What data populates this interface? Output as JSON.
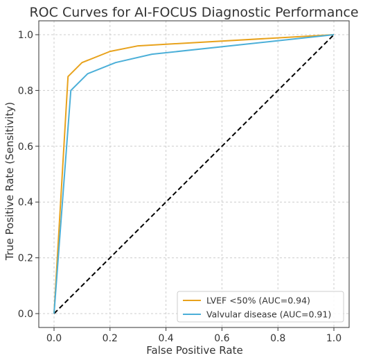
{
  "chart_data": {
    "type": "line",
    "title": "ROC Curves for AI-FOCUS Diagnostic Performance",
    "xlabel": "False Positive Rate",
    "ylabel": "True Positive Rate (Sensitivity)",
    "xlim": [
      0.0,
      1.0
    ],
    "ylim": [
      0.0,
      1.0
    ],
    "xticks": [
      "0.0",
      "0.2",
      "0.4",
      "0.6",
      "0.8",
      "1.0"
    ],
    "yticks": [
      "0.0",
      "0.2",
      "0.4",
      "0.6",
      "0.8",
      "1.0"
    ],
    "grid": true,
    "legend_position": "lower-right",
    "series": [
      {
        "name": "LVEF <50% (AUC=0.94)",
        "color": "#E8A21C",
        "x": [
          0.0,
          0.05,
          0.1,
          0.2,
          0.3,
          1.0
        ],
        "y": [
          0.0,
          0.85,
          0.9,
          0.94,
          0.96,
          1.0
        ]
      },
      {
        "name": "Valvular disease (AUC=0.91)",
        "color": "#4BAFD8",
        "x": [
          0.0,
          0.06,
          0.12,
          0.22,
          0.35,
          1.0
        ],
        "y": [
          0.0,
          0.8,
          0.86,
          0.9,
          0.93,
          1.0
        ]
      }
    ],
    "reference_line": {
      "x": [
        0.0,
        1.0
      ],
      "y": [
        0.0,
        1.0
      ],
      "color": "#000000",
      "style": "dashed"
    }
  }
}
